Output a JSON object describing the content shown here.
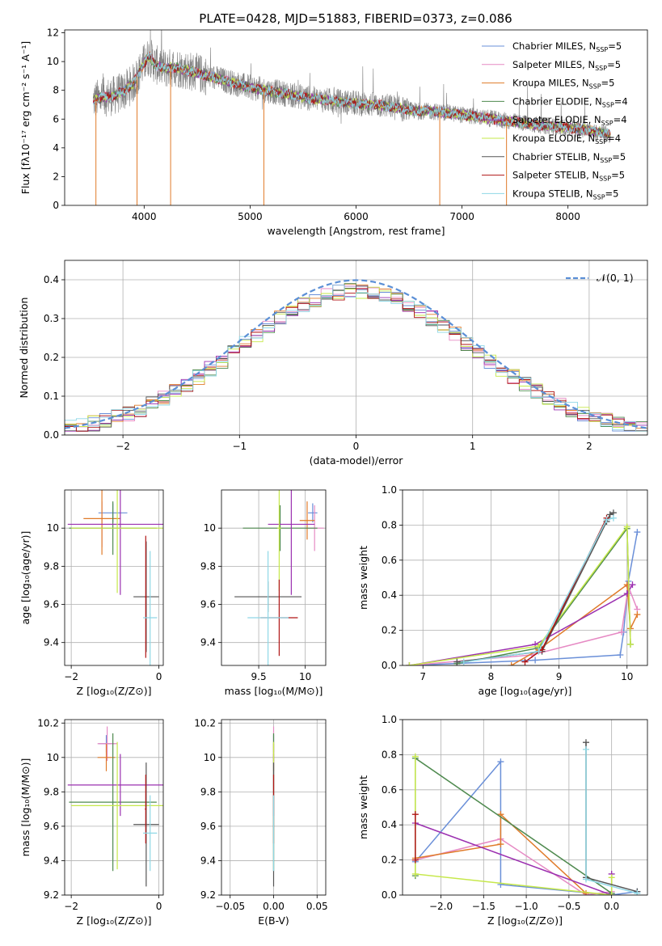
{
  "figure": {
    "title": "PLATE=0428, MJD=51883, FIBERID=0373, z=0.086"
  },
  "colors": {
    "Chabrier MILES": "#6a8fd8",
    "Salpeter MILES": "#e68ac4",
    "Kroupa MILES": "#e07b2a",
    "Chabrier ELODIE": "#4f8a4f",
    "Salpeter ELODIE": "#9b30b0",
    "Kroupa ELODIE": "#c6e84a",
    "Chabrier STELIB": "#555555",
    "Salpeter STELIB": "#b01515",
    "Kroupa STELIB": "#8fd8e6",
    "data": "#808080",
    "normal": "#5b8fd6"
  },
  "chart_data": [
    {
      "id": "spectrum",
      "type": "line",
      "xlabel": "wavelength [Angstrom, rest frame]",
      "ylabel": "Flux [fλ10⁻¹⁷ erg cm⁻² s⁻¹ A⁻¹]",
      "xlim": [
        3250,
        8750
      ],
      "ylim": [
        0,
        12.2
      ],
      "xticks": [
        4000,
        5000,
        6000,
        7000,
        8000
      ],
      "yticks": [
        0,
        2,
        4,
        6,
        8,
        10,
        12
      ],
      "grid": false,
      "legend_position": "top-right",
      "legend": [
        {
          "name": "Chabrier MILES, N",
          "sub": "SSP",
          "tail": "=5",
          "key": "Chabrier MILES"
        },
        {
          "name": "Salpeter MILES, N",
          "sub": "SSP",
          "tail": "=5",
          "key": "Salpeter MILES"
        },
        {
          "name": "Kroupa MILES, N",
          "sub": "SSP",
          "tail": "=5",
          "key": "Kroupa MILES"
        },
        {
          "name": "Chabrier ELODIE, N",
          "sub": "SSP",
          "tail": "=4",
          "key": "Chabrier ELODIE"
        },
        {
          "name": "Salpeter ELODIE, N",
          "sub": "SSP",
          "tail": "=4",
          "key": "Salpeter ELODIE"
        },
        {
          "name": "Kroupa ELODIE, N",
          "sub": "SSP",
          "tail": "=4",
          "key": "Kroupa ELODIE"
        },
        {
          "name": "Chabrier STELIB, N",
          "sub": "SSP",
          "tail": "=5",
          "key": "Chabrier STELIB"
        },
        {
          "name": "Salpeter STELIB, N",
          "sub": "SSP",
          "tail": "=5",
          "key": "Salpeter STELIB"
        },
        {
          "name": "Kroupa STELIB, N",
          "sub": "SSP",
          "tail": "=5",
          "key": "Kroupa STELIB"
        }
      ],
      "continuum": {
        "wavelength": [
          3520,
          3600,
          3700,
          3800,
          3900,
          4000,
          4050,
          4100,
          4200,
          4300,
          4500,
          4700,
          5000,
          5300,
          5600,
          6000,
          6300,
          6500,
          6800,
          7000,
          7200,
          7400,
          7500,
          7700,
          8000,
          8200,
          8400
        ],
        "flux": [
          7.3,
          7.5,
          7.6,
          7.9,
          8.5,
          9.9,
          10.4,
          9.8,
          9.5,
          9.6,
          9.2,
          8.8,
          8.2,
          7.8,
          7.4,
          7.1,
          6.9,
          6.6,
          6.5,
          6.3,
          6.1,
          5.9,
          5.8,
          5.6,
          5.4,
          5.2,
          4.9
        ]
      },
      "absorption_features": [
        {
          "wavelength": 3545,
          "depth_to": 0.0
        },
        {
          "wavelength": 3933,
          "depth_to": 0.0
        },
        {
          "wavelength": 4250,
          "depth_to": 0.0
        },
        {
          "wavelength": 5130,
          "depth_to": 0.0
        },
        {
          "wavelength": 6790,
          "depth_to": 0.0
        },
        {
          "wavelength": 7420,
          "depth_to": 0.0
        }
      ]
    },
    {
      "id": "residuals",
      "type": "histogram",
      "xlabel": "(data-model)/error",
      "ylabel": "Normed distribution",
      "xlim": [
        -2.5,
        2.5
      ],
      "ylim": [
        0,
        0.45
      ],
      "xticks": [
        -2,
        -1,
        0,
        1,
        2
      ],
      "yticks": [
        0.0,
        0.1,
        0.2,
        0.3,
        0.4
      ],
      "grid": true,
      "bin_width": 0.1,
      "legend_position": "top-right",
      "legend": [
        {
          "name": "𝒩(0, 1)",
          "key": "normal",
          "style": "dashed"
        }
      ]
    },
    {
      "id": "age-vs-Z",
      "type": "errorbar",
      "xlabel": "Z [log₁₀(Z/Z⊙)]",
      "ylabel": "age  [log₁₀(age/yr)]",
      "xlim": [
        -2.15,
        0.1
      ],
      "ylim": [
        9.28,
        10.2
      ],
      "xticks": [
        -2,
        0
      ],
      "yticks": [
        9.4,
        9.6,
        9.8,
        10.0
      ],
      "grid": true,
      "points": [
        {
          "key": "Chabrier MILES",
          "x": -1.05,
          "xerr": 0.33,
          "y": 10.08,
          "yerr": 0.05
        },
        {
          "key": "Salpeter MILES",
          "x": -1.3,
          "xerr": 0.5,
          "y": 10.02,
          "yerr": 0.12
        },
        {
          "key": "Kroupa MILES",
          "x": -1.3,
          "xerr": 0.42,
          "y": 10.05,
          "yerr": 0.19
        },
        {
          "key": "Chabrier ELODIE",
          "x": -1.05,
          "xerr": 1.0,
          "y": 10.0,
          "yerr": 0.14
        },
        {
          "key": "Salpeter ELODIE",
          "x": -0.88,
          "xerr": 1.2,
          "y": 10.02,
          "yerr": 0.37
        },
        {
          "key": "Kroupa ELODIE",
          "x": -0.95,
          "xerr": 1.05,
          "y": 10.0,
          "yerr": 0.34
        },
        {
          "key": "Chabrier STELIB",
          "x": -0.29,
          "xerr": 0.29,
          "y": 9.64,
          "yerr": 0.29
        },
        {
          "key": "Salpeter STELIB",
          "x": -0.3,
          "xerr": 0.02,
          "y": 9.64,
          "yerr": 0.32
        },
        {
          "key": "Kroupa STELIB",
          "x": -0.2,
          "xerr": 0.16,
          "y": 9.53,
          "yerr": 0.35
        }
      ]
    },
    {
      "id": "age-vs-mass",
      "type": "errorbar",
      "xlabel": "mass [log₁₀(M/M⊙)]",
      "ylabel": "",
      "xlim": [
        9.1,
        10.22
      ],
      "ylim": [
        9.28,
        10.2
      ],
      "xticks": [
        9.5,
        10.0
      ],
      "yticks": [
        9.4,
        9.6,
        9.8,
        10.0
      ],
      "grid": true,
      "points": [
        {
          "key": "Chabrier MILES",
          "x": 10.08,
          "xerr": 0.05,
          "y": 10.08,
          "yerr": 0.05
        },
        {
          "key": "Salpeter MILES",
          "x": 10.1,
          "xerr": 0.1,
          "y": 10.0,
          "yerr": 0.12
        },
        {
          "key": "Kroupa MILES",
          "x": 10.02,
          "xerr": 0.08,
          "y": 10.04,
          "yerr": 0.1
        },
        {
          "key": "Chabrier ELODIE",
          "x": 9.73,
          "xerr": 0.4,
          "y": 10.0,
          "yerr": 0.12
        },
        {
          "key": "Salpeter ELODIE",
          "x": 9.85,
          "xerr": 0.25,
          "y": 10.02,
          "yerr": 0.37
        },
        {
          "key": "Kroupa ELODIE",
          "x": 9.72,
          "xerr": 0.02,
          "y": 10.0,
          "yerr": 0.33
        },
        {
          "key": "Chabrier STELIB",
          "x": 9.6,
          "xerr": 0.36,
          "y": 9.64,
          "yerr": 0.08
        },
        {
          "key": "Salpeter STELIB",
          "x": 9.72,
          "xerr": 0.2,
          "y": 9.53,
          "yerr": 0.2
        },
        {
          "key": "Kroupa STELIB",
          "x": 9.6,
          "xerr": 0.22,
          "y": 9.53,
          "yerr": 0.35
        }
      ]
    },
    {
      "id": "weight-vs-age",
      "type": "line",
      "xlabel": "age  [log₁₀(age/yr)]",
      "ylabel": "mass weight",
      "xlim": [
        6.7,
        10.3
      ],
      "ylim": [
        0,
        1.0
      ],
      "xticks": [
        7,
        8,
        9,
        10
      ],
      "yticks": [
        0.0,
        0.2,
        0.4,
        0.6,
        0.8,
        1.0
      ],
      "grid": true,
      "series": [
        {
          "key": "Chabrier MILES",
          "x": [
            6.8,
            8.65,
            9.9,
            9.95,
            10.02,
            10.15
          ],
          "y": [
            0.0,
            0.03,
            0.06,
            0.19,
            0.48,
            0.76
          ]
        },
        {
          "key": "Salpeter MILES",
          "x": [
            6.8,
            8.6,
            9.92,
            10.02,
            10.15
          ],
          "y": [
            0.0,
            0.06,
            0.19,
            0.45,
            0.32
          ]
        },
        {
          "key": "Kroupa MILES",
          "x": [
            8.3,
            8.7,
            10.0,
            10.05,
            10.15
          ],
          "y": [
            0.0,
            0.09,
            0.46,
            0.21,
            0.29
          ]
        },
        {
          "key": "Chabrier ELODIE",
          "x": [
            7.5,
            8.7,
            10.0,
            10.05
          ],
          "y": [
            0.01,
            0.1,
            0.78,
            0.12
          ]
        },
        {
          "key": "Salpeter ELODIE",
          "x": [
            6.8,
            8.65,
            10.0,
            10.08
          ],
          "y": [
            0.0,
            0.12,
            0.41,
            0.46
          ]
        },
        {
          "key": "Kroupa ELODIE",
          "x": [
            6.8,
            8.7,
            10.0,
            10.05
          ],
          "y": [
            0.0,
            0.11,
            0.79,
            0.12
          ]
        },
        {
          "key": "Chabrier STELIB",
          "x": [
            7.5,
            8.75,
            9.7,
            9.75,
            9.8
          ],
          "y": [
            0.02,
            0.08,
            0.82,
            0.86,
            0.87
          ]
        },
        {
          "key": "Salpeter STELIB",
          "x": [
            8.5,
            8.75,
            9.7
          ],
          "y": [
            0.02,
            0.09,
            0.84
          ]
        },
        {
          "key": "Kroupa STELIB",
          "x": [
            7.6,
            8.7,
            9.7,
            9.8
          ],
          "y": [
            0.02,
            0.08,
            0.83,
            0.84
          ]
        }
      ]
    },
    {
      "id": "mass-vs-Z",
      "type": "errorbar",
      "xlabel": "Z [log₁₀(Z/Z⊙)]",
      "ylabel": "mass [log₁₀(M/M⊙)]",
      "xlim": [
        -2.15,
        0.1
      ],
      "ylim": [
        9.2,
        10.22
      ],
      "xticks": [
        -2,
        0
      ],
      "yticks": [
        9.2,
        9.4,
        9.6,
        9.8,
        10.0,
        10.2
      ],
      "grid": true,
      "points": [
        {
          "key": "Chabrier MILES",
          "x": -1.2,
          "xerr": 0.18,
          "y": 10.08,
          "yerr": 0.05
        },
        {
          "key": "Salpeter MILES",
          "x": -1.18,
          "xerr": 0.22,
          "y": 10.08,
          "yerr": 0.1
        },
        {
          "key": "Kroupa MILES",
          "x": -1.2,
          "xerr": 0.2,
          "y": 10.0,
          "yerr": 0.08
        },
        {
          "key": "Chabrier ELODIE",
          "x": -1.05,
          "xerr": 1.0,
          "y": 9.74,
          "yerr": 0.4
        },
        {
          "key": "Salpeter ELODIE",
          "x": -0.88,
          "xerr": 1.2,
          "y": 9.84,
          "yerr": 0.18
        },
        {
          "key": "Kroupa ELODIE",
          "x": -0.95,
          "xerr": 1.05,
          "y": 9.72,
          "yerr": 0.37
        },
        {
          "key": "Chabrier STELIB",
          "x": -0.29,
          "xerr": 0.29,
          "y": 9.61,
          "yerr": 0.36
        },
        {
          "key": "Salpeter STELIB",
          "x": -0.3,
          "xerr": 0.02,
          "y": 9.7,
          "yerr": 0.2
        },
        {
          "key": "Kroupa STELIB",
          "x": -0.2,
          "xerr": 0.16,
          "y": 9.56,
          "yerr": 0.22
        }
      ]
    },
    {
      "id": "mass-vs-ebv",
      "type": "errorbar",
      "xlabel": "E(B-V)",
      "ylabel": "",
      "xlim": [
        -0.06,
        0.06
      ],
      "ylim": [
        9.2,
        10.22
      ],
      "xticks": [
        -0.05,
        0.0,
        0.05
      ],
      "xticklabels": [
        "−0.05",
        "0.00",
        "0.05"
      ],
      "yticks": [
        9.2,
        9.4,
        9.6,
        9.8,
        10.0,
        10.2
      ],
      "grid": true,
      "points": [
        {
          "key": "Chabrier MILES",
          "x": 0.0,
          "xerr": 0.0,
          "y": 10.08,
          "yerr": 0.05
        },
        {
          "key": "Salpeter MILES",
          "x": 0.0,
          "xerr": 0.0,
          "y": 10.08,
          "yerr": 0.1
        },
        {
          "key": "Kroupa MILES",
          "x": 0.0,
          "xerr": 0.0,
          "y": 10.0,
          "yerr": 0.08
        },
        {
          "key": "Chabrier ELODIE",
          "x": 0.0,
          "xerr": 0.0,
          "y": 9.74,
          "yerr": 0.4
        },
        {
          "key": "Salpeter ELODIE",
          "x": 0.0,
          "xerr": 0.0,
          "y": 9.84,
          "yerr": 0.18
        },
        {
          "key": "Kroupa ELODIE",
          "x": 0.0,
          "xerr": 0.0,
          "y": 9.72,
          "yerr": 0.37
        },
        {
          "key": "Chabrier STELIB",
          "x": 0.0,
          "xerr": 0.0,
          "y": 9.61,
          "yerr": 0.36
        },
        {
          "key": "Salpeter STELIB",
          "x": 0.0,
          "xerr": 0.0,
          "y": 9.7,
          "yerr": 0.2
        },
        {
          "key": "Kroupa STELIB",
          "x": 0.0,
          "xerr": 0.0,
          "y": 9.56,
          "yerr": 0.22
        }
      ]
    },
    {
      "id": "weight-vs-Z",
      "type": "line",
      "xlabel": "Z [log₁₀(Z/Z⊙)]",
      "ylabel": "mass weight",
      "xlim": [
        -2.45,
        0.42
      ],
      "ylim": [
        0,
        1.0
      ],
      "xticks": [
        -2.0,
        -1.5,
        -1.0,
        -0.5,
        0.0
      ],
      "xticklabels": [
        "−2.0",
        "−1.5",
        "−1.0",
        "−0.5",
        "0.0"
      ],
      "yticks": [
        0.0,
        0.2,
        0.4,
        0.6,
        0.8,
        1.0
      ],
      "grid": true,
      "series": [
        {
          "key": "Chabrier MILES",
          "x": [
            -2.3,
            -1.3,
            -1.3,
            0.0,
            0.3
          ],
          "y": [
            0.19,
            0.76,
            0.06,
            0.0,
            0.02
          ]
        },
        {
          "key": "Salpeter MILES",
          "x": [
            -2.3,
            -1.3,
            -0.3,
            0.0
          ],
          "y": [
            0.2,
            0.32,
            0.0,
            0.02
          ]
        },
        {
          "key": "Kroupa MILES",
          "x": [
            -2.3,
            -1.3,
            -1.3,
            -0.3
          ],
          "y": [
            0.21,
            0.29,
            0.46,
            0.01
          ]
        },
        {
          "key": "Chabrier ELODIE",
          "x": [
            -2.3,
            -2.3,
            0.0
          ],
          "y": [
            0.11,
            0.78,
            0.01
          ]
        },
        {
          "key": "Salpeter ELODIE",
          "x": [
            -2.3,
            0.0,
            0.0
          ],
          "y": [
            0.41,
            0.0,
            0.12
          ]
        },
        {
          "key": "Kroupa ELODIE",
          "x": [
            -2.3,
            -2.3,
            0.0,
            0.0
          ],
          "y": [
            0.79,
            0.12,
            0.0,
            0.1
          ]
        },
        {
          "key": "Chabrier STELIB",
          "x": [
            -0.3,
            -0.3,
            0.3
          ],
          "y": [
            0.87,
            0.1,
            0.02
          ]
        },
        {
          "key": "Salpeter STELIB",
          "x": [
            -2.3,
            -2.3
          ],
          "y": [
            0.46,
            0.2
          ]
        },
        {
          "key": "Kroupa STELIB",
          "x": [
            -0.3,
            -0.3,
            0.3
          ],
          "y": [
            0.83,
            0.09,
            0.01
          ]
        }
      ]
    }
  ]
}
